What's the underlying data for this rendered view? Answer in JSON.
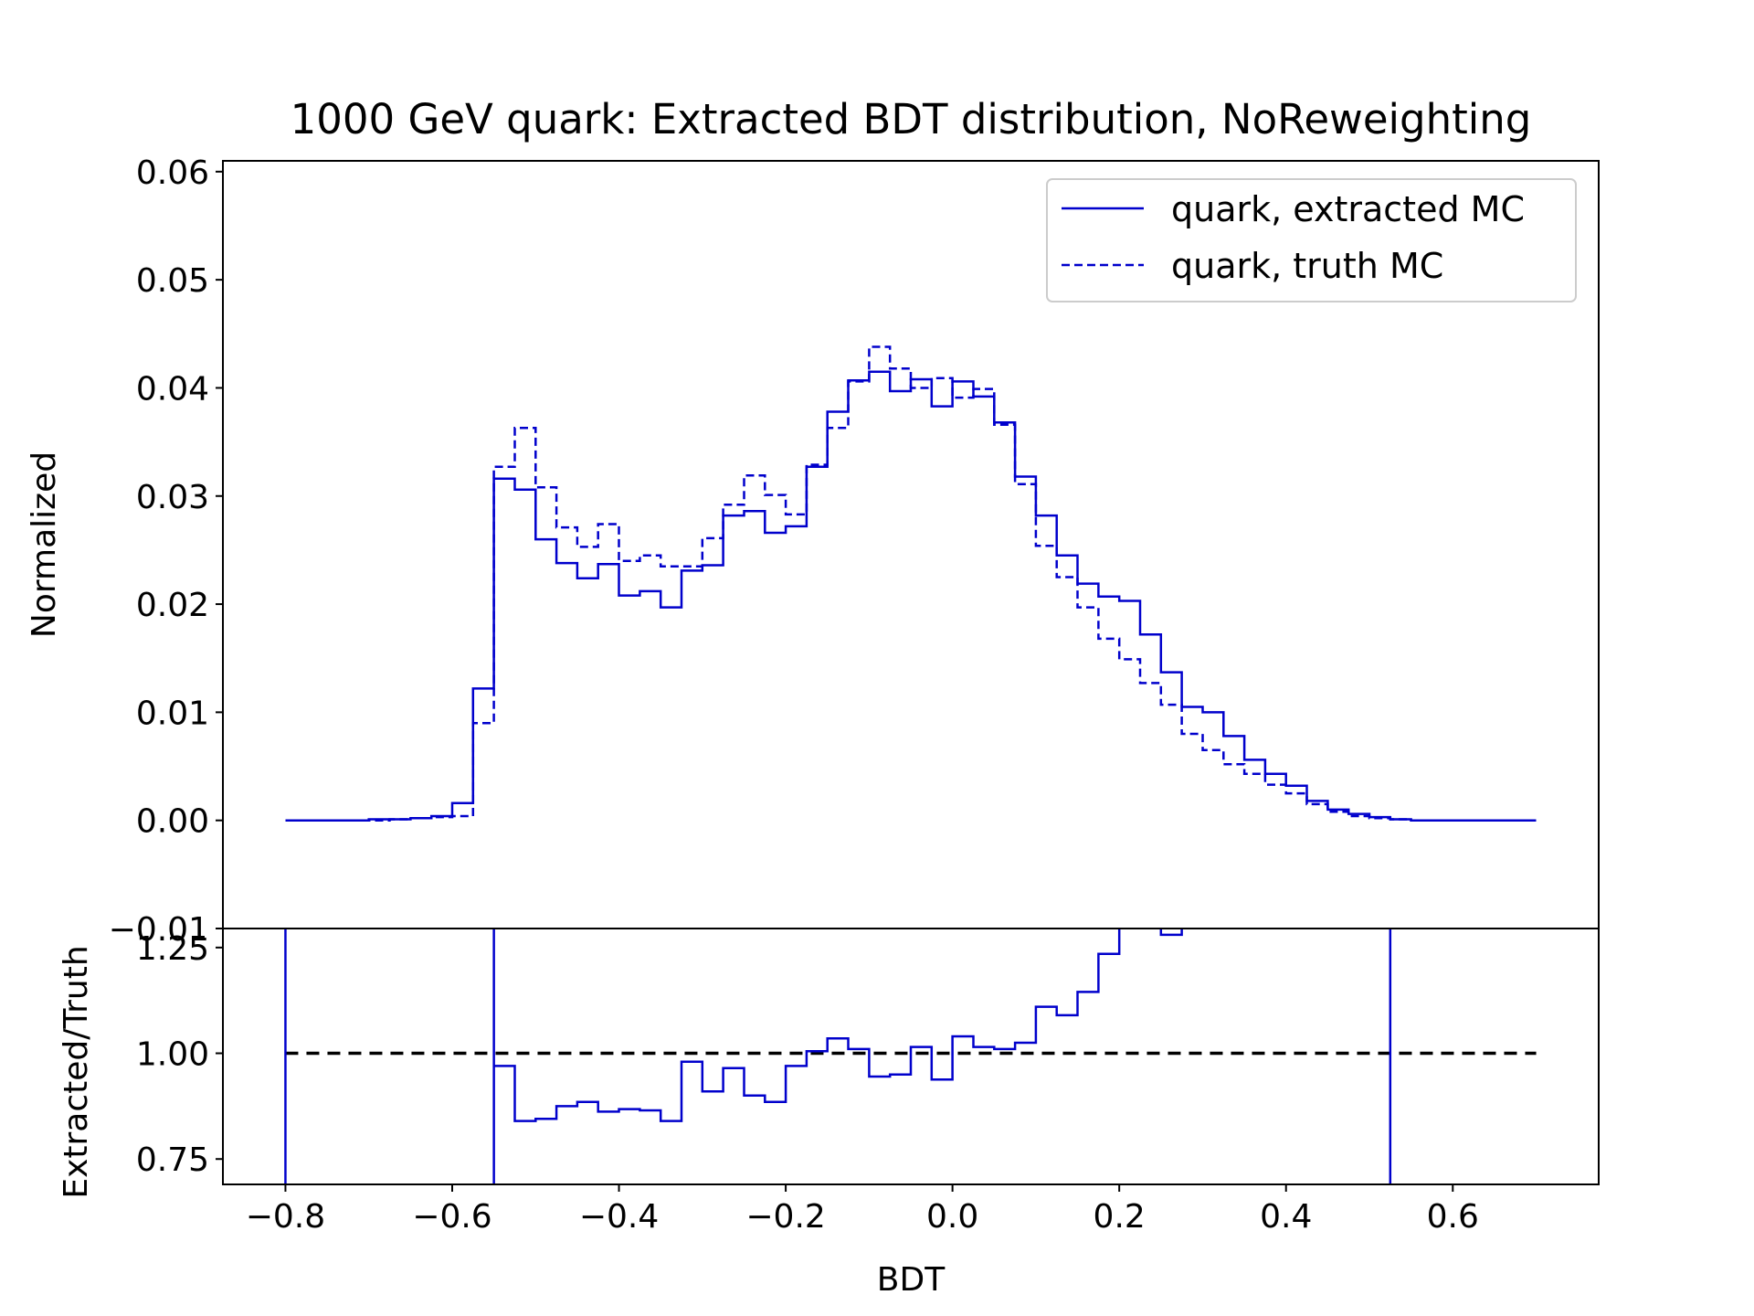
{
  "chart_data": [
    {
      "type": "line",
      "title": "1000 GeV quark: Extracted BDT distribution, NoReweighting",
      "ylabel": "Normalized",
      "xlim": [
        -0.875,
        0.775
      ],
      "ylim": [
        -0.01,
        0.061
      ],
      "yticks": [
        "−0.01",
        "0.00",
        "0.01",
        "0.02",
        "0.03",
        "0.04",
        "0.05",
        "0.06"
      ],
      "legend": {
        "position": "top-right"
      },
      "bin_edges": [
        -0.8,
        -0.775,
        -0.75,
        -0.725,
        -0.7,
        -0.675,
        -0.65,
        -0.625,
        -0.6,
        -0.575,
        -0.55,
        -0.525,
        -0.5,
        -0.475,
        -0.45,
        -0.425,
        -0.4,
        -0.375,
        -0.35,
        -0.325,
        -0.3,
        -0.275,
        -0.25,
        -0.225,
        -0.2,
        -0.175,
        -0.15,
        -0.125,
        -0.1,
        -0.075,
        -0.05,
        -0.025,
        0.0,
        0.025,
        0.05,
        0.075,
        0.1,
        0.125,
        0.15,
        0.175,
        0.2,
        0.225,
        0.25,
        0.275,
        0.3,
        0.325,
        0.35,
        0.375,
        0.4,
        0.425,
        0.45,
        0.475,
        0.5,
        0.525,
        0.55,
        0.575,
        0.6,
        0.625,
        0.65,
        0.675,
        0.7
      ],
      "series": [
        {
          "name": "quark, extracted MC",
          "style": "solid",
          "color": "#0000cc",
          "values": [
            0.0,
            0.0,
            0.0,
            0.0,
            0.0001,
            0.0001,
            0.0002,
            0.0004,
            0.0016,
            0.0122,
            0.0316,
            0.0306,
            0.026,
            0.0238,
            0.0224,
            0.0237,
            0.0208,
            0.0212,
            0.0197,
            0.0231,
            0.0236,
            0.0282,
            0.0286,
            0.0266,
            0.0272,
            0.0327,
            0.0378,
            0.0407,
            0.0415,
            0.0397,
            0.0408,
            0.0383,
            0.0406,
            0.0392,
            0.0368,
            0.0318,
            0.0282,
            0.0245,
            0.0219,
            0.0207,
            0.0203,
            0.0172,
            0.0137,
            0.0105,
            0.01,
            0.0078,
            0.0056,
            0.0043,
            0.0032,
            0.0018,
            0.001,
            0.0006,
            0.0003,
            0.0001,
            0.0,
            0.0,
            0.0,
            0.0,
            0.0,
            0.0
          ]
        },
        {
          "name": "quark, truth MC",
          "style": "dashed",
          "color": "#0000cc",
          "values": [
            0.0,
            0.0,
            0.0,
            0.0,
            0.0,
            0.0001,
            0.0002,
            0.0003,
            0.0004,
            0.009,
            0.0327,
            0.0363,
            0.0308,
            0.0271,
            0.0253,
            0.0274,
            0.024,
            0.0245,
            0.0235,
            0.0235,
            0.0261,
            0.0292,
            0.0319,
            0.0301,
            0.0283,
            0.0329,
            0.0363,
            0.0406,
            0.0438,
            0.0418,
            0.04,
            0.0409,
            0.0391,
            0.0399,
            0.0366,
            0.0311,
            0.0254,
            0.0225,
            0.0197,
            0.0168,
            0.0149,
            0.0127,
            0.0107,
            0.008,
            0.0065,
            0.0052,
            0.0043,
            0.0033,
            0.0025,
            0.0015,
            0.0008,
            0.0004,
            0.0002,
            0.0001,
            0.0,
            0.0,
            0.0,
            0.0,
            0.0,
            0.0
          ]
        }
      ]
    },
    {
      "type": "line",
      "xlabel": "BDT",
      "ylabel": "Extracted/Truth",
      "xlim": [
        -0.875,
        0.775
      ],
      "ylim": [
        0.69,
        1.295
      ],
      "xticks": [
        "−0.8",
        "−0.6",
        "−0.4",
        "−0.2",
        "0.0",
        "0.2",
        "0.4",
        "0.6"
      ],
      "yticks": [
        "0.75",
        "1.00",
        "1.25"
      ],
      "reference_line": {
        "y": 1.0,
        "style": "dashed",
        "color": "#000000"
      },
      "bin_edges": [
        -0.8,
        -0.775,
        -0.75,
        -0.725,
        -0.7,
        -0.675,
        -0.65,
        -0.625,
        -0.6,
        -0.575,
        -0.55,
        -0.525,
        -0.5,
        -0.475,
        -0.45,
        -0.425,
        -0.4,
        -0.375,
        -0.35,
        -0.325,
        -0.3,
        -0.275,
        -0.25,
        -0.225,
        -0.2,
        -0.175,
        -0.15,
        -0.125,
        -0.1,
        -0.075,
        -0.05,
        -0.025,
        0.0,
        0.025,
        0.05,
        0.075,
        0.1,
        0.125,
        0.15,
        0.175,
        0.2,
        0.225,
        0.25,
        0.275,
        0.3,
        0.325,
        0.35,
        0.375,
        0.4,
        0.425,
        0.45,
        0.475,
        0.5,
        0.525
      ],
      "series": [
        {
          "name": "ratio",
          "style": "solid",
          "color": "#0000cc",
          "values": [
            null,
            null,
            null,
            null,
            null,
            null,
            null,
            null,
            null,
            null,
            0.97,
            0.84,
            0.845,
            0.875,
            0.885,
            0.862,
            0.868,
            0.865,
            0.84,
            0.98,
            0.91,
            0.965,
            0.9,
            0.885,
            0.97,
            1.005,
            1.035,
            1.01,
            0.945,
            0.95,
            1.015,
            0.938,
            1.04,
            1.015,
            1.01,
            1.025,
            1.11,
            1.09,
            1.145,
            1.235,
            1.32,
            1.36,
            1.28,
            1.35,
            null,
            null,
            null,
            null,
            null,
            null,
            null,
            null,
            null
          ],
          "vertical_lines_x": [
            -0.8,
            -0.55,
            0.525
          ]
        }
      ]
    }
  ]
}
